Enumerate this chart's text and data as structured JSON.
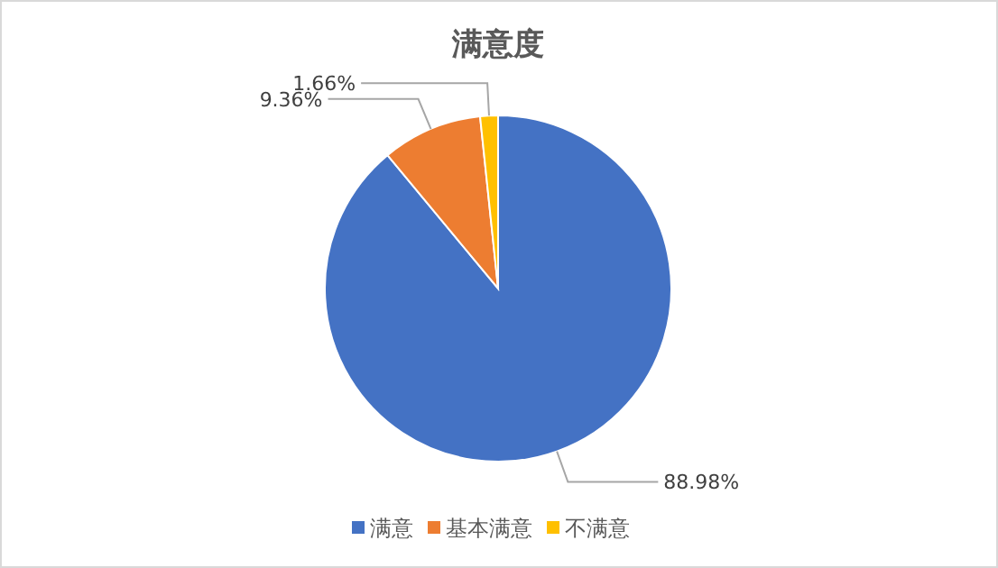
{
  "chart_data": {
    "type": "pie",
    "title": "满意度",
    "categories": [
      "满意",
      "基本满意",
      "不满意"
    ],
    "values": [
      88.98,
      9.36,
      1.66
    ],
    "colors": [
      "#4472c4",
      "#ed7d31",
      "#ffc000"
    ],
    "value_labels": [
      "88.98%",
      "9.36%",
      "1.66%"
    ],
    "legend": "bottom"
  }
}
